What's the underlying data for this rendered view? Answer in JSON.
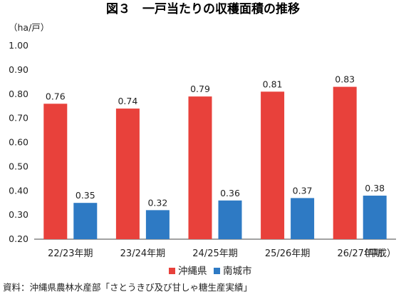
{
  "chart_data": {
    "type": "bar",
    "title": "図３　一戸当たりの収穫面積の推移",
    "ylabel": "（ha/戸）",
    "xlabel": "（平成）",
    "ylim": [
      0.2,
      1.0
    ],
    "yticks": [
      "0.20",
      "0.30",
      "0.40",
      "0.50",
      "0.60",
      "0.70",
      "0.80",
      "0.90",
      "1.00"
    ],
    "ytick_values": [
      0.2,
      0.3,
      0.4,
      0.5,
      0.6,
      0.7,
      0.8,
      0.9,
      1.0
    ],
    "categories": [
      "22/23年期",
      "23/24年期",
      "24/25年期",
      "25/26年期",
      "26/27年期"
    ],
    "series": [
      {
        "name": "沖縄県",
        "color": "#e8413b",
        "values": [
          0.76,
          0.74,
          0.79,
          0.81,
          0.83
        ],
        "labels": [
          "0.76",
          "0.74",
          "0.79",
          "0.81",
          "0.83"
        ]
      },
      {
        "name": "南城市",
        "color": "#2e7ac4",
        "values": [
          0.35,
          0.32,
          0.36,
          0.37,
          0.38
        ],
        "labels": [
          "0.35",
          "0.32",
          "0.36",
          "0.37",
          "0.38"
        ]
      }
    ],
    "grid": false,
    "legend_position": "bottom",
    "source": "資料：沖縄県農林水産部「さとうきび及び甘しゃ糖生産実績」"
  }
}
